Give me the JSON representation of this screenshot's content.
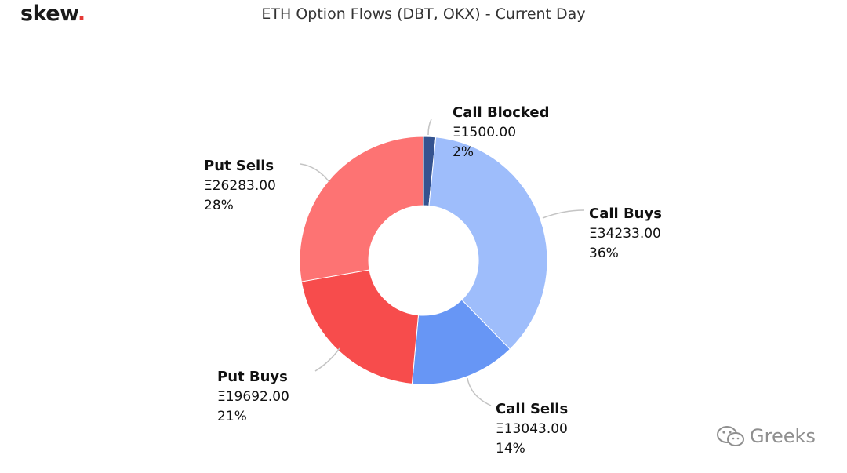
{
  "brand": {
    "name": "skew",
    "dot": "."
  },
  "chart_data": {
    "type": "pie",
    "subtype": "donut",
    "title": "ETH Option Flows (DBT, OKX) - Current Day",
    "slices": [
      {
        "label": "Call Blocked",
        "value": 1500.0,
        "value_label": "Ξ1500.00",
        "percent_label": "2%",
        "color": "#34538f"
      },
      {
        "label": "Call Buys",
        "value": 34233.0,
        "value_label": "Ξ34233.00",
        "percent_label": "36%",
        "color": "#9ebdfb"
      },
      {
        "label": "Call Sells",
        "value": 13043.0,
        "value_label": "Ξ13043.00",
        "percent_label": "14%",
        "color": "#6796f5"
      },
      {
        "label": "Put Buys",
        "value": 19692.0,
        "value_label": "Ξ19692.00",
        "percent_label": "21%",
        "color": "#f74c4c"
      },
      {
        "label": "Put Sells",
        "value": 26283.0,
        "value_label": "Ξ26283.00",
        "percent_label": "28%",
        "color": "#fd7373"
      }
    ],
    "legend": "none",
    "connector_color": "#c4c4c4"
  },
  "watermark": {
    "text": "Greeks",
    "icon": "wechat-icon"
  }
}
